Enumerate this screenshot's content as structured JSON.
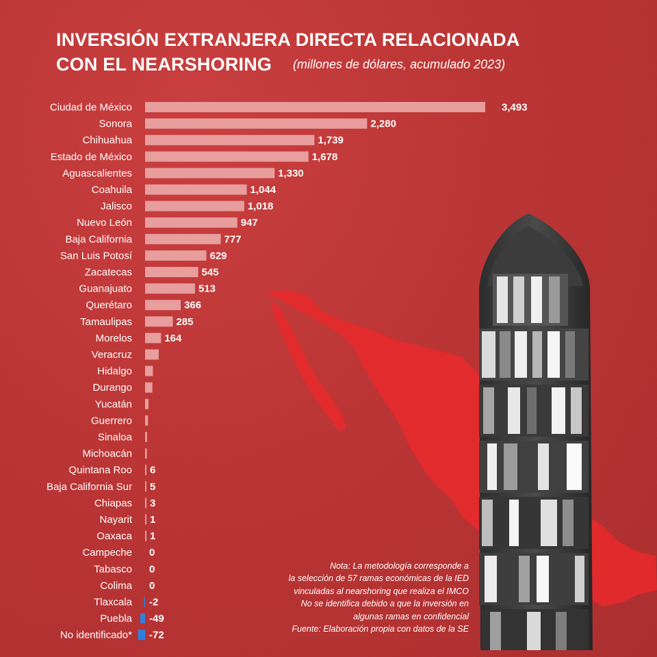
{
  "title_line1": "INVERSIÓN EXTRANJERA DIRECTA RELACIONADA",
  "title_line2": "CON EL NEARSHORING",
  "subtitle": "(millones de dólares, acumulado 2023)",
  "notes": [
    "Nota: La metodología corresponde a",
    "la selección de 57 ramas económicas de la IED",
    "vinculadas al nearshoring que realiza el IMCO",
    "No se identifica debido a que la inversión en",
    "algunas ramas en confidencial",
    "Fuente: Elaboración propia con datos de la SE"
  ],
  "colors": {
    "background": "#c8393a",
    "positive_bar": "#e79e9c",
    "negative_bar": "#2e7fe0",
    "text": "#ffffff",
    "map": "#e62a2c"
  },
  "chart_data": {
    "type": "bar",
    "orientation": "horizontal",
    "title": "INVERSIÓN EXTRANJERA DIRECTA RELACIONADA CON EL NEARSHORING",
    "subtitle": "(millones de dólares, acumulado 2023)",
    "xlabel": "",
    "ylabel": "",
    "grid": false,
    "legend": "none",
    "categories": [
      "Ciudad de México",
      "Sonora",
      "Chihuahua",
      "Estado de México",
      "Aguascalientes",
      "Coahuila",
      "Jalisco",
      "Nuevo León",
      "Baja California",
      "San Luis Potosí",
      "Zacatecas",
      "Guanajuato",
      "Querétaro",
      "Tamaulipas",
      "Morelos",
      "Veracruz",
      "Hidalgo",
      "Durango",
      "Yucatán",
      "Guerrero",
      "Sinaloa",
      "Michoacán",
      "Quintana Roo",
      "Baja California Sur",
      "Chiapas",
      "Nayarit",
      "Oaxaca",
      "Campeche",
      "Tabasco",
      "Colima",
      "Tlaxcala",
      "Puebla",
      "No identificado*"
    ],
    "values": [
      3493,
      2280,
      1739,
      1678,
      1330,
      1044,
      1018,
      947,
      777,
      629,
      545,
      513,
      366,
      285,
      164,
      140,
      80,
      75,
      35,
      30,
      20,
      18,
      6,
      5,
      3,
      1,
      1,
      0,
      0,
      0,
      -2,
      -49,
      -72
    ],
    "value_labels": [
      "3,493",
      "2,280",
      "1,739",
      "1,678",
      "1,330",
      "1,044",
      "1,018",
      "947",
      "777",
      "629",
      "545",
      "513",
      "366",
      "285",
      "164",
      "",
      "",
      "",
      "",
      "",
      "",
      "",
      "6",
      "5",
      "3",
      "1",
      "1",
      "0",
      "0",
      "0",
      "-2",
      "-49",
      "-72"
    ],
    "xlim": [
      -100,
      3500
    ]
  }
}
